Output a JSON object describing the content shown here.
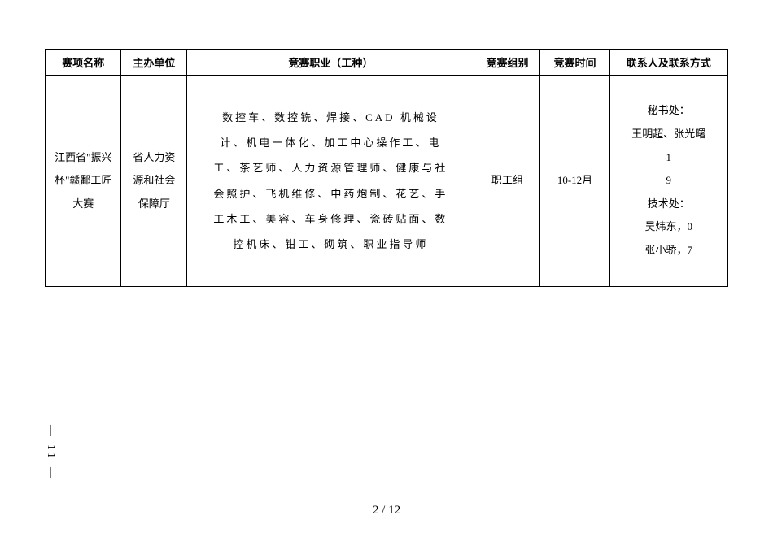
{
  "table": {
    "headers": {
      "col1": "赛项名称",
      "col2": "主办单位",
      "col3": "竞赛职业（工种）",
      "col4": "竞赛组别",
      "col5": "竞赛时间",
      "col6": "联系人及联系方式"
    },
    "row": {
      "col1": "江西省\"振兴杯\"赣鄱工匠大赛",
      "col2": "省人力资源和社会保障厅",
      "col3": "数控车、数控铣、焊接、CAD 机械设计、机电一体化、加工中心操作工、电工、茶艺师、人力资源管理师、健康与社会照护、飞机维修、中药炮制、花艺、手工木工、美容、车身修理、瓷砖贴面、数控机床、钳工、砌筑、职业指导师",
      "col4": "职工组",
      "col5": "10-12月",
      "col6_line1": "秘书处：",
      "col6_line2": "王明超、张光曙",
      "col6_line3": "1",
      "col6_line4": "9",
      "col6_line5": "技术处：",
      "col6_line6": "吴炜东，0",
      "col6_line7": "张小骄，7"
    }
  },
  "side": "— 11 —",
  "page": "2 / 12"
}
